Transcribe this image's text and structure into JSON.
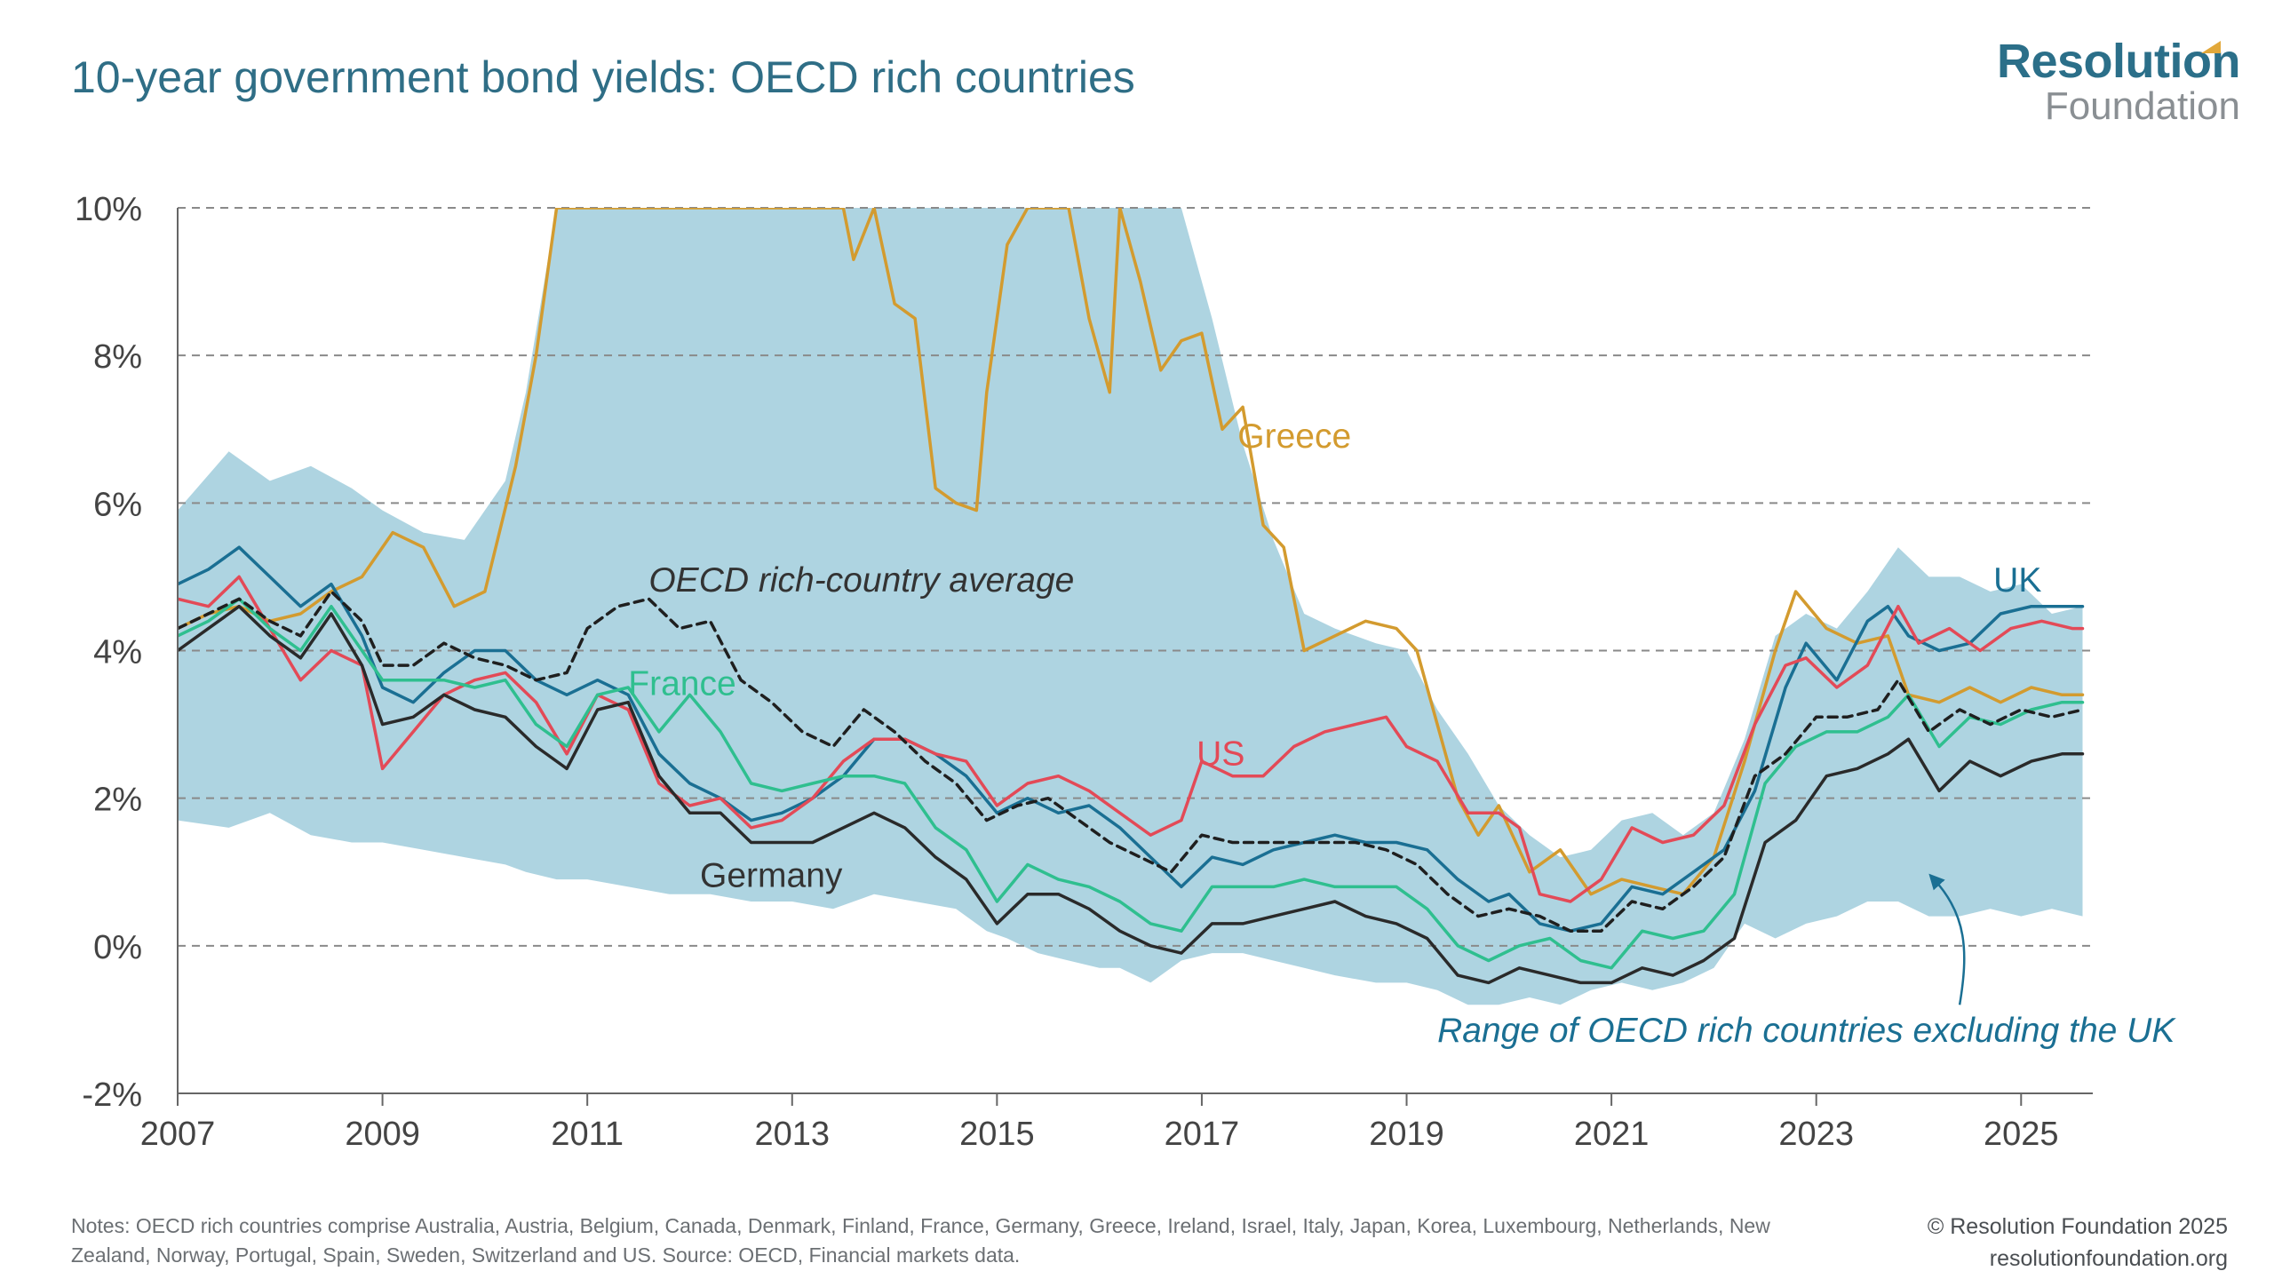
{
  "header": {
    "title": "10-year government bond yields: OECD rich countries"
  },
  "logo": {
    "line1": "Resolution",
    "line2": "Foundation"
  },
  "footer": {
    "notes": "Notes: OECD rich countries comprise Australia, Austria, Belgium, Canada, Denmark, Finland, France, Germany, Greece, Ireland, Israel, Italy, Japan, Korea, Luxembourg, Netherlands, New Zealand, Norway, Portugal, Spain, Sweden, Switzerland and US. Source: OECD, Financial markets data.",
    "copyright": "© Resolution Foundation 2025",
    "website": "resolutionfoundation.org"
  },
  "colors": {
    "range": "#aed4e1",
    "uk": "#1a6f93",
    "us": "#e34a57",
    "france": "#2fbf8f",
    "germany": "#2a2a2a",
    "greece": "#d39b2f",
    "average": "#1f1f1f",
    "range_label": "#1a6f93",
    "axis_text": "#444444",
    "grid": "#8a8a8a"
  },
  "chart_data": {
    "type": "line",
    "title": "10-year government bond yields: OECD rich countries",
    "xlabel": "",
    "ylabel": "",
    "xlim": [
      2007.0,
      2025.7
    ],
    "ylim": [
      -2,
      10
    ],
    "x_ticks": [
      "2007",
      "2009",
      "2011",
      "2013",
      "2015",
      "2017",
      "2019",
      "2021",
      "2023",
      "2025"
    ],
    "y_ticks": [
      "-2%",
      "0%",
      "2%",
      "4%",
      "6%",
      "8%",
      "10%"
    ],
    "grid": "horizontal dashed",
    "annotations": {
      "greece": "Greece",
      "uk": "UK",
      "us": "US",
      "france": "France",
      "germany": "Germany",
      "average": "OECD rich-country average",
      "range": "Range of OECD rich countries excluding the UK"
    },
    "range_band": {
      "name": "Range of OECD rich countries excluding the UK",
      "x": [
        2007.0,
        2007.5,
        2007.9,
        2008.3,
        2008.7,
        2009.0,
        2009.4,
        2009.8,
        2010.2,
        2010.4,
        2010.7,
        2011.0,
        2011.4,
        2011.8,
        2012.2,
        2012.6,
        2013.0,
        2013.4,
        2013.8,
        2014.2,
        2014.6,
        2014.9,
        2015.1,
        2015.4,
        2015.7,
        2016.0,
        2016.2,
        2016.5,
        2016.8,
        2017.1,
        2017.4,
        2017.7,
        2018.0,
        2018.3,
        2018.7,
        2019.0,
        2019.3,
        2019.6,
        2019.9,
        2020.2,
        2020.5,
        2020.8,
        2021.1,
        2021.4,
        2021.7,
        2022.0,
        2022.3,
        2022.6,
        2022.9,
        2023.2,
        2023.5,
        2023.8,
        2024.1,
        2024.4,
        2024.7,
        2025.0,
        2025.3,
        2025.6
      ],
      "upper": [
        5.9,
        6.7,
        6.3,
        6.5,
        6.2,
        5.9,
        5.6,
        5.5,
        6.3,
        7.5,
        10,
        10,
        10,
        10,
        10,
        10,
        10,
        10,
        10,
        10,
        10,
        10,
        10,
        10,
        10,
        10,
        10,
        10,
        10,
        8.5,
        6.8,
        5.5,
        4.5,
        4.3,
        4.1,
        4.0,
        3.2,
        2.6,
        1.9,
        1.5,
        1.2,
        1.3,
        1.7,
        1.8,
        1.5,
        1.8,
        2.8,
        4.2,
        4.5,
        4.3,
        4.8,
        5.4,
        5.0,
        5.0,
        4.8,
        4.9,
        4.5,
        4.6
      ],
      "lower": [
        1.7,
        1.6,
        1.8,
        1.5,
        1.4,
        1.4,
        1.3,
        1.2,
        1.1,
        1.0,
        0.9,
        0.9,
        0.8,
        0.7,
        0.7,
        0.6,
        0.6,
        0.5,
        0.7,
        0.6,
        0.5,
        0.2,
        0.1,
        -0.1,
        -0.2,
        -0.3,
        -0.3,
        -0.5,
        -0.2,
        -0.1,
        -0.1,
        -0.2,
        -0.3,
        -0.4,
        -0.5,
        -0.5,
        -0.6,
        -0.8,
        -0.8,
        -0.7,
        -0.8,
        -0.6,
        -0.5,
        -0.6,
        -0.5,
        -0.3,
        0.3,
        0.1,
        0.3,
        0.4,
        0.6,
        0.6,
        0.4,
        0.4,
        0.5,
        0.4,
        0.5,
        0.4
      ]
    },
    "series": [
      {
        "name": "Greece",
        "key": "greece",
        "style": "solid",
        "x": [
          2007.0,
          2007.3,
          2007.6,
          2007.9,
          2008.2,
          2008.5,
          2008.8,
          2009.1,
          2009.4,
          2009.7,
          2010.0,
          2010.3,
          2010.5,
          2010.7,
          2010.9,
          2011.3,
          2011.7,
          2012.1,
          2012.5,
          2012.9,
          2013.2,
          2013.5,
          2013.6,
          2013.8,
          2014.0,
          2014.2,
          2014.4,
          2014.6,
          2014.8,
          2014.9,
          2015.1,
          2015.3,
          2015.5,
          2015.7,
          2015.9,
          2016.1,
          2016.2,
          2016.4,
          2016.6,
          2016.8,
          2017.0,
          2017.2,
          2017.4,
          2017.6,
          2017.8,
          2018.0,
          2018.3,
          2018.6,
          2018.9,
          2019.1,
          2019.3,
          2019.5,
          2019.7,
          2019.9,
          2020.2,
          2020.5,
          2020.8,
          2021.1,
          2021.4,
          2021.7,
          2022.0,
          2022.3,
          2022.6,
          2022.8,
          2023.1,
          2023.4,
          2023.7,
          2023.9,
          2024.2,
          2024.5,
          2024.8,
          2025.1,
          2025.4,
          2025.6
        ],
        "values": [
          4.3,
          4.5,
          4.6,
          4.4,
          4.5,
          4.8,
          5.0,
          5.6,
          5.4,
          4.6,
          4.8,
          6.5,
          8.0,
          10.0,
          10.0,
          10.0,
          10.0,
          10.0,
          10.0,
          10.0,
          10.0,
          10.0,
          9.3,
          10.0,
          8.7,
          8.5,
          6.2,
          6.0,
          5.9,
          7.5,
          9.5,
          10.0,
          10.0,
          10.0,
          8.5,
          7.5,
          10.0,
          9.0,
          7.8,
          8.2,
          8.3,
          7.0,
          7.3,
          5.7,
          5.4,
          4.0,
          4.2,
          4.4,
          4.3,
          4.0,
          3.0,
          2.0,
          1.5,
          1.9,
          1.0,
          1.3,
          0.7,
          0.9,
          0.8,
          0.7,
          1.2,
          2.5,
          4.0,
          4.8,
          4.3,
          4.1,
          4.2,
          3.4,
          3.3,
          3.5,
          3.3,
          3.5,
          3.4,
          3.4
        ]
      },
      {
        "name": "UK",
        "key": "uk",
        "style": "solid",
        "x": [
          2007.0,
          2007.3,
          2007.6,
          2007.9,
          2008.2,
          2008.5,
          2008.8,
          2009.0,
          2009.3,
          2009.6,
          2009.9,
          2010.2,
          2010.5,
          2010.8,
          2011.1,
          2011.4,
          2011.7,
          2012.0,
          2012.3,
          2012.6,
          2012.9,
          2013.2,
          2013.5,
          2013.8,
          2014.1,
          2014.4,
          2014.7,
          2015.0,
          2015.3,
          2015.6,
          2015.9,
          2016.2,
          2016.5,
          2016.8,
          2017.1,
          2017.4,
          2017.7,
          2018.0,
          2018.3,
          2018.6,
          2018.9,
          2019.2,
          2019.5,
          2019.8,
          2020.0,
          2020.3,
          2020.6,
          2020.9,
          2021.2,
          2021.5,
          2021.8,
          2022.1,
          2022.4,
          2022.7,
          2022.9,
          2023.2,
          2023.5,
          2023.7,
          2023.9,
          2024.2,
          2024.5,
          2024.8,
          2025.1,
          2025.4,
          2025.6
        ],
        "values": [
          4.9,
          5.1,
          5.4,
          5.0,
          4.6,
          4.9,
          4.2,
          3.5,
          3.3,
          3.7,
          4.0,
          4.0,
          3.6,
          3.4,
          3.6,
          3.4,
          2.6,
          2.2,
          2.0,
          1.7,
          1.8,
          2.0,
          2.3,
          2.8,
          2.8,
          2.6,
          2.3,
          1.8,
          2.0,
          1.8,
          1.9,
          1.6,
          1.2,
          0.8,
          1.2,
          1.1,
          1.3,
          1.4,
          1.5,
          1.4,
          1.4,
          1.3,
          0.9,
          0.6,
          0.7,
          0.3,
          0.2,
          0.3,
          0.8,
          0.7,
          1.0,
          1.3,
          2.1,
          3.5,
          4.1,
          3.6,
          4.4,
          4.6,
          4.2,
          4.0,
          4.1,
          4.5,
          4.6,
          4.6,
          4.6
        ]
      },
      {
        "name": "US",
        "key": "us",
        "style": "solid",
        "x": [
          2007.0,
          2007.3,
          2007.6,
          2007.9,
          2008.2,
          2008.5,
          2008.8,
          2009.0,
          2009.3,
          2009.6,
          2009.9,
          2010.2,
          2010.5,
          2010.8,
          2011.1,
          2011.4,
          2011.7,
          2012.0,
          2012.3,
          2012.6,
          2012.9,
          2013.2,
          2013.5,
          2013.8,
          2014.1,
          2014.4,
          2014.7,
          2015.0,
          2015.3,
          2015.6,
          2015.9,
          2016.2,
          2016.5,
          2016.8,
          2017.0,
          2017.3,
          2017.6,
          2017.9,
          2018.2,
          2018.5,
          2018.8,
          2019.0,
          2019.3,
          2019.6,
          2019.9,
          2020.1,
          2020.3,
          2020.6,
          2020.9,
          2021.2,
          2021.5,
          2021.8,
          2022.1,
          2022.4,
          2022.7,
          2022.9,
          2023.2,
          2023.5,
          2023.8,
          2024.0,
          2024.3,
          2024.6,
          2024.9,
          2025.2,
          2025.5,
          2025.6
        ],
        "values": [
          4.7,
          4.6,
          5.0,
          4.3,
          3.6,
          4.0,
          3.8,
          2.4,
          2.9,
          3.4,
          3.6,
          3.7,
          3.3,
          2.6,
          3.4,
          3.2,
          2.2,
          1.9,
          2.0,
          1.6,
          1.7,
          2.0,
          2.5,
          2.8,
          2.8,
          2.6,
          2.5,
          1.9,
          2.2,
          2.3,
          2.1,
          1.8,
          1.5,
          1.7,
          2.5,
          2.3,
          2.3,
          2.7,
          2.9,
          3.0,
          3.1,
          2.7,
          2.5,
          1.8,
          1.8,
          1.6,
          0.7,
          0.6,
          0.9,
          1.6,
          1.4,
          1.5,
          1.9,
          3.0,
          3.8,
          3.9,
          3.5,
          3.8,
          4.6,
          4.1,
          4.3,
          4.0,
          4.3,
          4.4,
          4.3,
          4.3
        ]
      },
      {
        "name": "France",
        "key": "france",
        "style": "solid",
        "x": [
          2007.0,
          2007.3,
          2007.6,
          2007.9,
          2008.2,
          2008.5,
          2008.8,
          2009.0,
          2009.3,
          2009.6,
          2009.9,
          2010.2,
          2010.5,
          2010.8,
          2011.1,
          2011.4,
          2011.7,
          2012.0,
          2012.3,
          2012.6,
          2012.9,
          2013.2,
          2013.5,
          2013.8,
          2014.1,
          2014.4,
          2014.7,
          2015.0,
          2015.3,
          2015.6,
          2015.9,
          2016.2,
          2016.5,
          2016.8,
          2017.1,
          2017.4,
          2017.7,
          2018.0,
          2018.3,
          2018.6,
          2018.9,
          2019.2,
          2019.5,
          2019.8,
          2020.1,
          2020.4,
          2020.7,
          2021.0,
          2021.3,
          2021.6,
          2021.9,
          2022.2,
          2022.5,
          2022.8,
          2023.1,
          2023.4,
          2023.7,
          2023.9,
          2024.2,
          2024.5,
          2024.8,
          2025.1,
          2025.4,
          2025.6
        ],
        "values": [
          4.2,
          4.4,
          4.7,
          4.3,
          4.0,
          4.6,
          4.0,
          3.6,
          3.6,
          3.6,
          3.5,
          3.6,
          3.0,
          2.7,
          3.4,
          3.5,
          2.9,
          3.4,
          2.9,
          2.2,
          2.1,
          2.2,
          2.3,
          2.3,
          2.2,
          1.6,
          1.3,
          0.6,
          1.1,
          0.9,
          0.8,
          0.6,
          0.3,
          0.2,
          0.8,
          0.8,
          0.8,
          0.9,
          0.8,
          0.8,
          0.8,
          0.5,
          0.0,
          -0.2,
          0.0,
          0.1,
          -0.2,
          -0.3,
          0.2,
          0.1,
          0.2,
          0.7,
          2.2,
          2.7,
          2.9,
          2.9,
          3.1,
          3.4,
          2.7,
          3.1,
          3.0,
          3.2,
          3.3,
          3.3
        ]
      },
      {
        "name": "Germany",
        "key": "germany",
        "style": "solid",
        "x": [
          2007.0,
          2007.3,
          2007.6,
          2007.9,
          2008.2,
          2008.5,
          2008.8,
          2009.0,
          2009.3,
          2009.6,
          2009.9,
          2010.2,
          2010.5,
          2010.8,
          2011.1,
          2011.4,
          2011.7,
          2012.0,
          2012.3,
          2012.6,
          2012.9,
          2013.2,
          2013.5,
          2013.8,
          2014.1,
          2014.4,
          2014.7,
          2015.0,
          2015.3,
          2015.6,
          2015.9,
          2016.2,
          2016.5,
          2016.8,
          2017.1,
          2017.4,
          2017.7,
          2018.0,
          2018.3,
          2018.6,
          2018.9,
          2019.2,
          2019.5,
          2019.8,
          2020.1,
          2020.4,
          2020.7,
          2021.0,
          2021.3,
          2021.6,
          2021.9,
          2022.2,
          2022.5,
          2022.8,
          2023.1,
          2023.4,
          2023.7,
          2023.9,
          2024.2,
          2024.5,
          2024.8,
          2025.1,
          2025.4,
          2025.6
        ],
        "values": [
          4.0,
          4.3,
          4.6,
          4.2,
          3.9,
          4.5,
          3.8,
          3.0,
          3.1,
          3.4,
          3.2,
          3.1,
          2.7,
          2.4,
          3.2,
          3.3,
          2.3,
          1.8,
          1.8,
          1.4,
          1.4,
          1.4,
          1.6,
          1.8,
          1.6,
          1.2,
          0.9,
          0.3,
          0.7,
          0.7,
          0.5,
          0.2,
          0.0,
          -0.1,
          0.3,
          0.3,
          0.4,
          0.5,
          0.6,
          0.4,
          0.3,
          0.1,
          -0.4,
          -0.5,
          -0.3,
          -0.4,
          -0.5,
          -0.5,
          -0.3,
          -0.4,
          -0.2,
          0.1,
          1.4,
          1.7,
          2.3,
          2.4,
          2.6,
          2.8,
          2.1,
          2.5,
          2.3,
          2.5,
          2.6,
          2.6
        ]
      },
      {
        "name": "OECD rich-country average",
        "key": "average",
        "style": "dashed",
        "x": [
          2007.0,
          2007.3,
          2007.6,
          2007.9,
          2008.2,
          2008.5,
          2008.8,
          2009.0,
          2009.3,
          2009.6,
          2009.9,
          2010.2,
          2010.5,
          2010.8,
          2011.0,
          2011.3,
          2011.6,
          2011.9,
          2012.2,
          2012.5,
          2012.8,
          2013.1,
          2013.4,
          2013.7,
          2014.0,
          2014.3,
          2014.6,
          2014.9,
          2015.2,
          2015.5,
          2015.8,
          2016.1,
          2016.4,
          2016.7,
          2017.0,
          2017.3,
          2017.6,
          2017.9,
          2018.2,
          2018.5,
          2018.8,
          2019.1,
          2019.4,
          2019.7,
          2020.0,
          2020.3,
          2020.6,
          2020.9,
          2021.2,
          2021.5,
          2021.8,
          2022.1,
          2022.4,
          2022.7,
          2023.0,
          2023.3,
          2023.6,
          2023.8,
          2024.1,
          2024.4,
          2024.7,
          2025.0,
          2025.3,
          2025.6
        ],
        "values": [
          4.3,
          4.5,
          4.7,
          4.4,
          4.2,
          4.8,
          4.4,
          3.8,
          3.8,
          4.1,
          3.9,
          3.8,
          3.6,
          3.7,
          4.3,
          4.6,
          4.7,
          4.3,
          4.4,
          3.6,
          3.3,
          2.9,
          2.7,
          3.2,
          2.9,
          2.5,
          2.2,
          1.7,
          1.9,
          2.0,
          1.7,
          1.4,
          1.2,
          1.0,
          1.5,
          1.4,
          1.4,
          1.4,
          1.4,
          1.4,
          1.3,
          1.1,
          0.7,
          0.4,
          0.5,
          0.4,
          0.2,
          0.2,
          0.6,
          0.5,
          0.8,
          1.2,
          2.3,
          2.6,
          3.1,
          3.1,
          3.2,
          3.6,
          2.9,
          3.2,
          3.0,
          3.2,
          3.1,
          3.2
        ]
      }
    ]
  }
}
